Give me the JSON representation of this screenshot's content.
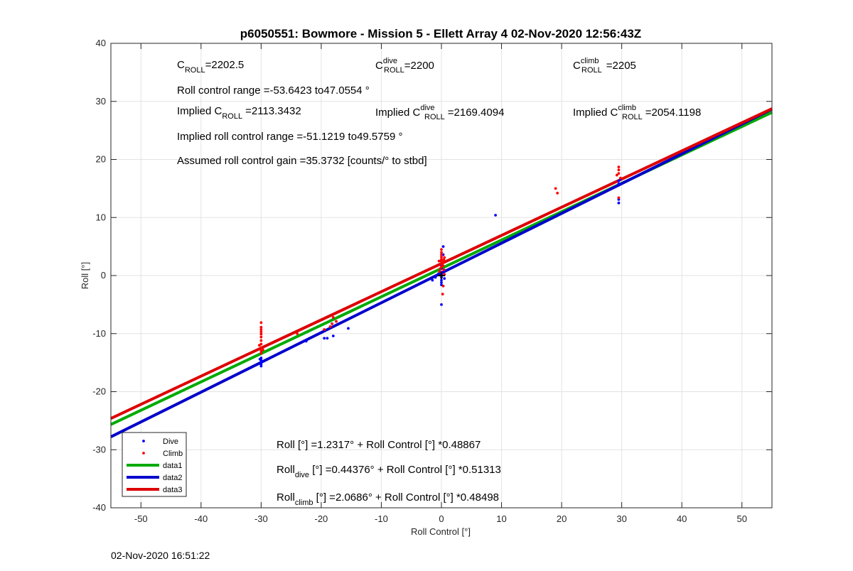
{
  "chart_data": {
    "type": "scatter",
    "title": "p6050551: Bowmore - Mission 5 - Ellett Array 4 02-Nov-2020 12:56:43Z",
    "xlabel": "Roll Control [°]",
    "ylabel": "Roll [°]",
    "xlim": [
      -55,
      55
    ],
    "ylim": [
      -40,
      40
    ],
    "xticks": [
      -50,
      -40,
      -30,
      -20,
      -10,
      0,
      10,
      20,
      30,
      40,
      50
    ],
    "yticks": [
      -40,
      -30,
      -20,
      -10,
      0,
      10,
      20,
      30,
      40
    ],
    "grid": true,
    "legend_placement": "bottom-left",
    "series": [
      {
        "name": "Dive",
        "kind": "points",
        "color": "#0000ff",
        "points": [
          [
            -30,
            -14.2
          ],
          [
            -30,
            -14.6
          ],
          [
            -30,
            -15.0
          ],
          [
            -30,
            -15.3
          ],
          [
            -30,
            -15.6
          ],
          [
            -30.2,
            -14.4
          ],
          [
            -29.8,
            -14.8
          ],
          [
            -22.5,
            -11.3
          ],
          [
            -19.5,
            -10.8
          ],
          [
            -19,
            -10.8
          ],
          [
            -18,
            -10.4
          ],
          [
            -15.5,
            -9.1
          ],
          [
            -1.5,
            -0.8
          ],
          [
            -1.0,
            -0.3
          ],
          [
            -0.5,
            0.3
          ],
          [
            0,
            1.2
          ],
          [
            0,
            0.6
          ],
          [
            0,
            0.2
          ],
          [
            0,
            -0.3
          ],
          [
            0,
            -0.8
          ],
          [
            0,
            -1.2
          ],
          [
            0,
            -1.6
          ],
          [
            0,
            -5.0
          ],
          [
            0,
            1.8
          ],
          [
            0,
            2.6
          ],
          [
            0.3,
            3.6
          ],
          [
            0.3,
            5.0
          ],
          [
            0.5,
            0.9
          ],
          [
            0.5,
            -0.5
          ],
          [
            -0.3,
            0.5
          ],
          [
            9,
            10.4
          ],
          [
            29.5,
            15.8
          ],
          [
            29.5,
            16.3
          ],
          [
            29.5,
            12.5
          ],
          [
            29.5,
            13.1
          ],
          [
            29.8,
            16.6
          ]
        ]
      },
      {
        "name": "Climb",
        "kind": "points",
        "color": "#ff0000",
        "points": [
          [
            -30,
            -8.1
          ],
          [
            -30,
            -8.9
          ],
          [
            -30,
            -9.3
          ],
          [
            -30,
            -9.7
          ],
          [
            -30,
            -10.1
          ],
          [
            -30,
            -10.6
          ],
          [
            -30,
            -11.2
          ],
          [
            -30,
            -11.8
          ],
          [
            -30,
            -12.4
          ],
          [
            -30,
            -13.0
          ],
          [
            -30,
            -13.4
          ],
          [
            -30.3,
            -12.0
          ],
          [
            -29.7,
            -12.8
          ],
          [
            -24,
            -10.0
          ],
          [
            -19.5,
            -9.3
          ],
          [
            -18.5,
            -8.8
          ],
          [
            -18,
            -7.2
          ],
          [
            -17.5,
            -7.9
          ],
          [
            -18.2,
            -8.3
          ],
          [
            -0.3,
            0.7
          ],
          [
            -0.2,
            1.2
          ],
          [
            0,
            1.5
          ],
          [
            0,
            2.0
          ],
          [
            0,
            2.4
          ],
          [
            0,
            2.8
          ],
          [
            0,
            3.2
          ],
          [
            0,
            3.6
          ],
          [
            0,
            4.0
          ],
          [
            0,
            4.5
          ],
          [
            0.2,
            2.2
          ],
          [
            0.4,
            2.7
          ],
          [
            0.3,
            1.7
          ],
          [
            0.5,
            3.1
          ],
          [
            0.4,
            1.0
          ],
          [
            -0.4,
            2.5
          ],
          [
            0.3,
            -1.8
          ],
          [
            0.2,
            -3.2
          ],
          [
            0.5,
            0.2
          ],
          [
            19,
            15.0
          ],
          [
            19.3,
            14.2
          ],
          [
            29.5,
            18.7
          ],
          [
            29.5,
            18.2
          ],
          [
            29.5,
            17.6
          ],
          [
            29.2,
            17.3
          ],
          [
            29.8,
            16.8
          ],
          [
            29.5,
            13.4
          ]
        ]
      },
      {
        "name": "data1",
        "kind": "line",
        "color": "#00aa00",
        "x": [
          -55,
          55
        ],
        "y": [
          -25.645,
          28.108
        ]
      },
      {
        "name": "data2",
        "kind": "line",
        "color": "#0000cc",
        "x": [
          -55,
          55
        ],
        "y": [
          -27.778,
          28.666
        ]
      },
      {
        "name": "data3",
        "kind": "line",
        "color": "#dd0000",
        "x": [
          -55,
          55
        ],
        "y": [
          -24.605,
          28.742
        ]
      }
    ],
    "marker": {
      "type": "plus",
      "x": 0,
      "y": 0,
      "color": "#000000"
    }
  },
  "annotations": {
    "c_roll": {
      "base": "C",
      "sub": "ROLL",
      "value": "=2202.5"
    },
    "c_roll_dive": {
      "base": "C",
      "sup": "dive",
      "sub": "ROLL",
      "value": "=2200"
    },
    "c_roll_climb": {
      "base": "C",
      "sup": "climb",
      "sub": "ROLL",
      "value": "=2205"
    },
    "roll_range": "Roll control range =-53.6423 to47.0554 °",
    "implied": {
      "pre": "Implied C",
      "sub": "ROLL",
      "value": "=2113.3432"
    },
    "implied_dive": {
      "pre": "Implied C",
      "sup": "dive",
      "sub": "ROLL",
      "value": "=2169.4094"
    },
    "implied_climb": {
      "pre": "Implied C",
      "sup": "climb",
      "sub": "ROLL",
      "value": "=2054.1198"
    },
    "implied_range": "Implied roll control range =-51.1219 to49.5759 °",
    "gain": "Assumed roll control gain =35.3732 [counts/° to stbd]",
    "fit_all": "Roll [°] =1.2317° + Roll Control [°] *0.48867",
    "fit_dive": {
      "pre": "Roll",
      "sub": "dive",
      "post": " [°] =0.44376° + Roll Control [°] *0.51313"
    },
    "fit_climb": {
      "pre": "Roll",
      "sub": "climb",
      "post": " [°] =2.0686° + Roll Control [°] *0.48498"
    }
  },
  "footer": {
    "timestamp": "02-Nov-2020 16:51:22"
  }
}
